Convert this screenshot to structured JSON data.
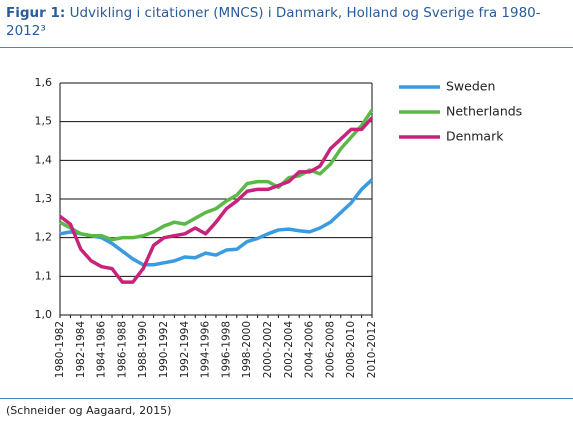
{
  "chart_data": {
    "type": "line",
    "title_label": "Figur 1:",
    "title": "Udvikling i citationer (MNCS) i Danmark, Holland og Sverige fra 1980-2012³",
    "source": "(Schneider og Aagaard, 2015)",
    "categories": [
      "1980-1982",
      null,
      "1982-1984",
      null,
      "1984-1986",
      null,
      "1986-1988",
      null,
      "1988-1990",
      null,
      "1990-1992",
      null,
      "1992-1994",
      null,
      "1994-1996",
      null,
      "1996-1998",
      null,
      "1998-2000",
      null,
      "2000-2002",
      null,
      "2002-2004",
      null,
      "2004-2006",
      null,
      "2006-2008",
      null,
      "2008-2010",
      null,
      "2010-2012"
    ],
    "ylim": [
      1.0,
      1.6
    ],
    "yticks": [
      {
        "value": 1.0,
        "label": "1,0"
      },
      {
        "value": 1.1,
        "label": "1,1"
      },
      {
        "value": 1.2,
        "label": "1,2"
      },
      {
        "value": 1.3,
        "label": "1,3"
      },
      {
        "value": 1.4,
        "label": "1,4"
      },
      {
        "value": 1.5,
        "label": "1,5"
      },
      {
        "value": 1.6,
        "label": "1,6"
      }
    ],
    "grid": true,
    "legend": "right",
    "series": [
      {
        "name": "Sweden",
        "color": "#3b9be0",
        "values": [
          1.21,
          1.215,
          1.21,
          1.205,
          1.2,
          1.185,
          1.165,
          1.145,
          1.13,
          1.13,
          1.135,
          1.14,
          1.15,
          1.148,
          1.16,
          1.155,
          1.168,
          1.17,
          1.19,
          1.198,
          1.21,
          1.22,
          1.222,
          1.218,
          1.215,
          1.225,
          1.24,
          1.265,
          1.29,
          1.325,
          1.35
        ]
      },
      {
        "name": "Netherlands",
        "color": "#5bb947",
        "values": [
          1.24,
          1.225,
          1.21,
          1.205,
          1.205,
          1.195,
          1.2,
          1.2,
          1.205,
          1.215,
          1.23,
          1.24,
          1.235,
          1.25,
          1.265,
          1.275,
          1.295,
          1.31,
          1.34,
          1.345,
          1.345,
          1.33,
          1.355,
          1.36,
          1.375,
          1.365,
          1.39,
          1.43,
          1.46,
          1.49,
          1.53
        ]
      },
      {
        "name": "Denmark",
        "color": "#c8237b",
        "values": [
          1.255,
          1.235,
          1.17,
          1.14,
          1.125,
          1.12,
          1.085,
          1.085,
          1.12,
          1.18,
          1.2,
          1.205,
          1.21,
          1.225,
          1.21,
          1.24,
          1.275,
          1.295,
          1.32,
          1.325,
          1.325,
          1.335,
          1.345,
          1.37,
          1.37,
          1.385,
          1.43,
          1.455,
          1.48,
          1.48,
          1.51
        ]
      }
    ]
  }
}
